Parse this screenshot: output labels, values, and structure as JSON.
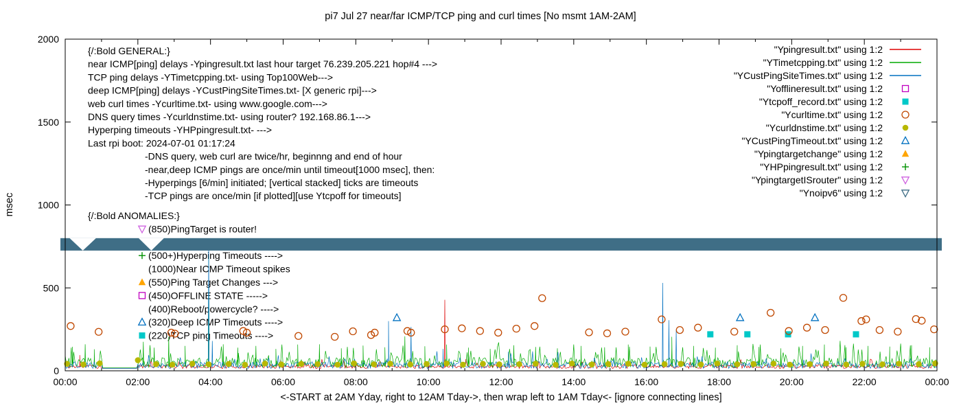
{
  "chart_data": {
    "type": "mixed-line-scatter",
    "title": "pi7 Jul 27  near/far ICMP/TCP ping and curl times [No msmt 1AM-2AM]",
    "xlabel": "<-START at 2AM Yday, right to 12AM Tday->, then wrap left to 1AM Tday<- [ignore connecting lines]",
    "ylabel": "msec",
    "xlim": [
      0,
      24
    ],
    "ylim": [
      0,
      2000
    ],
    "yticks": [
      0,
      500,
      1000,
      1500,
      2000
    ],
    "xticks": [
      "00:00",
      "02:00",
      "04:00",
      "06:00",
      "08:00",
      "10:00",
      "12:00",
      "14:00",
      "16:00",
      "18:00",
      "20:00",
      "22:00",
      "00:00"
    ],
    "grid": false,
    "no_measurement_gap_hours": [
      1,
      2
    ],
    "series": [
      {
        "name": "Ypingresult.txt",
        "style": "line",
        "color": "#dd0000",
        "noise": {
          "min": 14,
          "max": 38,
          "burst_p": 0.04,
          "burst_extra": 50,
          "seed": 11
        },
        "spikes": [
          [
            0.4,
            95
          ],
          [
            10.45,
            428
          ]
        ]
      },
      {
        "name": "YTimetcpping.txt",
        "style": "line",
        "color": "#00aa00",
        "noise": {
          "min": 18,
          "max": 80,
          "burst_p": 0.12,
          "burst_extra": 110,
          "seed": 23
        },
        "spikes": [
          [
            0.2,
            145
          ],
          [
            0.55,
            160
          ],
          [
            0.8,
            130
          ],
          [
            2.15,
            175
          ],
          [
            2.45,
            140
          ],
          [
            2.85,
            205
          ],
          [
            3.3,
            150
          ],
          [
            3.95,
            690
          ],
          [
            4.35,
            160
          ],
          [
            4.75,
            140
          ],
          [
            5.25,
            150
          ],
          [
            5.8,
            132
          ],
          [
            6.4,
            158
          ],
          [
            7.0,
            144
          ],
          [
            7.6,
            136
          ],
          [
            8.2,
            152
          ],
          [
            8.8,
            142
          ],
          [
            9.35,
            208
          ],
          [
            9.9,
            148
          ],
          [
            10.5,
            158
          ],
          [
            11.1,
            140
          ],
          [
            11.7,
            132
          ],
          [
            12.35,
            154
          ],
          [
            12.95,
            144
          ],
          [
            13.55,
            136
          ],
          [
            14.2,
            150
          ],
          [
            14.85,
            142
          ],
          [
            15.5,
            158
          ],
          [
            16.1,
            146
          ],
          [
            16.7,
            205
          ],
          [
            17.3,
            150
          ],
          [
            17.9,
            140
          ],
          [
            18.5,
            154
          ],
          [
            19.1,
            144
          ],
          [
            19.7,
            136
          ],
          [
            20.3,
            150
          ],
          [
            20.9,
            158
          ],
          [
            21.5,
            142
          ],
          [
            22.1,
            150
          ],
          [
            22.7,
            146
          ],
          [
            23.3,
            154
          ],
          [
            23.8,
            142
          ]
        ]
      },
      {
        "name": "YCustPingSiteTimes.txt",
        "style": "line",
        "color": "#0070c0",
        "noise": {
          "min": 14,
          "max": 55,
          "burst_p": 0.07,
          "burst_extra": 70,
          "seed": 37
        },
        "spikes": [
          [
            3.95,
            762
          ],
          [
            4.05,
            180
          ],
          [
            8.9,
            300
          ],
          [
            9.52,
            265
          ],
          [
            10.4,
            132
          ],
          [
            12.2,
            115
          ],
          [
            16.45,
            530
          ],
          [
            16.62,
            305
          ],
          [
            16.82,
            248
          ]
        ]
      },
      {
        "name": "Yofflineresult.txt",
        "style": "points",
        "marker": "square-open",
        "color": "#c000c0",
        "points": []
      },
      {
        "name": "Ytcpoff_record.txt",
        "style": "points",
        "marker": "square-filled",
        "color": "#00c8c8",
        "points": [
          [
            17.76,
            220
          ],
          [
            18.78,
            220
          ],
          [
            19.9,
            220
          ],
          [
            21.77,
            220
          ]
        ]
      },
      {
        "name": "Ycurltime.txt",
        "style": "points",
        "marker": "circle-open",
        "color": "#c04800",
        "points": [
          [
            0.15,
            270
          ],
          [
            0.92,
            235
          ],
          [
            2.92,
            230
          ],
          [
            3.02,
            224
          ],
          [
            4.9,
            240
          ],
          [
            5.0,
            230
          ],
          [
            6.42,
            210
          ],
          [
            7.42,
            205
          ],
          [
            7.92,
            238
          ],
          [
            8.42,
            216
          ],
          [
            8.52,
            230
          ],
          [
            9.42,
            240
          ],
          [
            9.52,
            230
          ],
          [
            10.45,
            250
          ],
          [
            10.92,
            256
          ],
          [
            11.42,
            240
          ],
          [
            11.92,
            230
          ],
          [
            12.42,
            254
          ],
          [
            12.92,
            270
          ],
          [
            13.13,
            438
          ],
          [
            14.42,
            232
          ],
          [
            14.92,
            226
          ],
          [
            15.42,
            236
          ],
          [
            16.42,
            310
          ],
          [
            16.92,
            246
          ],
          [
            17.42,
            260
          ],
          [
            18.42,
            236
          ],
          [
            19.42,
            350
          ],
          [
            19.92,
            240
          ],
          [
            20.42,
            260
          ],
          [
            20.92,
            246
          ],
          [
            21.42,
            440
          ],
          [
            21.92,
            300
          ],
          [
            22.05,
            310
          ],
          [
            22.42,
            246
          ],
          [
            22.92,
            236
          ],
          [
            23.42,
            312
          ],
          [
            23.58,
            302
          ],
          [
            23.92,
            250
          ]
        ]
      },
      {
        "name": "Ycurldnstime.txt",
        "style": "points",
        "marker": "circle-filled",
        "color": "#b8b800",
        "points": [
          [
            0.05,
            42
          ],
          [
            0.5,
            38
          ],
          [
            0.95,
            45
          ],
          [
            2.0,
            64
          ],
          [
            2.5,
            40
          ],
          [
            2.95,
            37
          ],
          [
            3.5,
            43
          ],
          [
            3.95,
            39
          ],
          [
            4.5,
            41
          ],
          [
            4.95,
            36
          ],
          [
            5.5,
            44
          ],
          [
            5.95,
            38
          ],
          [
            6.5,
            42
          ],
          [
            6.95,
            40
          ],
          [
            7.5,
            37
          ],
          [
            7.95,
            45
          ],
          [
            8.5,
            39
          ],
          [
            8.95,
            43
          ],
          [
            9.5,
            38
          ],
          [
            9.95,
            41
          ],
          [
            10.5,
            44
          ],
          [
            10.95,
            37
          ],
          [
            11.5,
            42
          ],
          [
            11.95,
            39
          ],
          [
            12.5,
            40
          ],
          [
            12.95,
            43
          ],
          [
            13.5,
            36
          ],
          [
            13.95,
            44
          ],
          [
            14.5,
            38
          ],
          [
            14.95,
            41
          ],
          [
            15.5,
            43
          ],
          [
            15.95,
            37
          ],
          [
            16.5,
            40
          ],
          [
            16.95,
            42
          ],
          [
            17.5,
            38
          ],
          [
            17.95,
            44
          ],
          [
            18.5,
            39
          ],
          [
            18.95,
            41
          ],
          [
            19.5,
            43
          ],
          [
            19.95,
            37
          ],
          [
            20.5,
            40
          ],
          [
            20.95,
            44
          ],
          [
            21.5,
            38
          ],
          [
            21.95,
            42
          ],
          [
            22.5,
            39
          ],
          [
            22.95,
            43
          ],
          [
            23.5,
            40
          ],
          [
            23.95,
            45
          ]
        ]
      },
      {
        "name": "YCustPingTimeout.txt",
        "style": "points",
        "marker": "triangle-open",
        "color": "#0070c0",
        "points": [
          [
            9.13,
            320
          ],
          [
            18.58,
            320
          ],
          [
            20.64,
            320
          ]
        ]
      },
      {
        "name": "Ypingtargetchange",
        "style": "points",
        "marker": "triangle-filled",
        "color": "#ffa500",
        "points": []
      },
      {
        "name": "YHPpingresult.txt",
        "style": "points",
        "marker": "plus",
        "color": "#009000",
        "points": []
      },
      {
        "name": "YpingtargetISrouter",
        "style": "points",
        "marker": "triangle-down-open",
        "color": "#cf63e0",
        "points": []
      },
      {
        "name": "Ynoipv6",
        "style": "band",
        "color": "#3f6e86",
        "band": {
          "y_from": 725,
          "y_to": 800,
          "notches": [
            [
              0.12,
              0.85
            ],
            [
              2.02,
              2.72
            ]
          ]
        }
      }
    ]
  },
  "legend": [
    {
      "label": "\"Ypingresult.txt\" using 1:2",
      "type": "line",
      "color": "#dd0000"
    },
    {
      "label": "\"YTimetcpping.txt\" using 1:2",
      "type": "line",
      "color": "#00aa00"
    },
    {
      "label": "\"YCustPingSiteTimes.txt\" using 1:2",
      "type": "line",
      "color": "#0070c0"
    },
    {
      "label": "\"Yofflineresult.txt\" using 1:2",
      "type": "square-open",
      "color": "#c000c0"
    },
    {
      "label": "\"Ytcpoff_record.txt\" using 1:2",
      "type": "square-filled",
      "color": "#00c8c8"
    },
    {
      "label": "\"Ycurltime.txt\" using 1:2",
      "type": "circle-open",
      "color": "#c04800"
    },
    {
      "label": "\"Ycurldnstime.txt\" using 1:2",
      "type": "circle-filled",
      "color": "#b8b800"
    },
    {
      "label": "\"YCustPingTimeout.txt\" using 1:2",
      "type": "triangle-open",
      "color": "#0070c0"
    },
    {
      "label": "\"Ypingtargetchange\" using 1:2",
      "type": "triangle-filled",
      "color": "#ffa500"
    },
    {
      "label": "\"YHPpingresult.txt\" using 1:2",
      "type": "plus",
      "color": "#009000"
    },
    {
      "label": "\"YpingtargetISrouter\" using 1:2",
      "type": "triangle-down-open",
      "color": "#cf63e0"
    },
    {
      "label": "\"Ynoipv6\" using 1:2",
      "type": "triangle-down-open",
      "color": "#3f6e86"
    }
  ],
  "annotations": {
    "general": [
      {
        "text": "{/:Bold GENERAL:}",
        "indent": 0
      },
      {
        "text": "near ICMP[ping] delays -Ypingresult.txt last hour target 76.239.205.221 hop#4 --->",
        "indent": 0
      },
      {
        "text": "TCP ping delays -YTimetcpping.txt- using Top100Web--->",
        "indent": 0
      },
      {
        "text": "deep ICMP[ping] delays -YCustPingSiteTimes.txt- [X generic rpi]--->",
        "indent": 0
      },
      {
        "text": "web curl times -Ycurltime.txt- using www.google.com--->",
        "indent": 0
      },
      {
        "text": "DNS query times -Ycurldnstime.txt- using router? 192.168.86.1--->",
        "indent": 0
      },
      {
        "text": "Hyperping timeouts -YHPpingresult.txt- --->",
        "indent": 0
      },
      {
        "text": "Last rpi boot: 2024-07-01 01:17:24",
        "indent": 0
      },
      {
        "text": "-DNS query, web curl are twice/hr, beginnng and end of hour",
        "indent": 1
      },
      {
        "text": "-near,deep ICMP pings are once/min until timeout[1000 msec], then:",
        "indent": 1
      },
      {
        "text": "-Hyperpings [6/min] initiated; [vertical stacked] ticks are timeouts",
        "indent": 1
      },
      {
        "text": "-TCP pings are once/min [if plotted][use Ytcpoff for timeouts]",
        "indent": 1
      }
    ],
    "anomalies": [
      {
        "text": "{/:Bold ANOMALIES:}",
        "marker": null,
        "color": null
      },
      {
        "text": "(850)PingTarget is router!",
        "marker": "triangle-down-open",
        "color": "#cf63e0"
      },
      {
        "text": "",
        "marker": null,
        "color": null
      },
      {
        "text": "(500+)Hyperping Timeouts ---->",
        "marker": "plus",
        "color": "#009000"
      },
      {
        "text": "(1000)Near ICMP Timeout spikes",
        "marker": null,
        "color": null
      },
      {
        "text": "(550)Ping Target Changes --->",
        "marker": "triangle-filled",
        "color": "#ffa500"
      },
      {
        "text": "(450)OFFLINE STATE ----->",
        "marker": "square-open",
        "color": "#c000c0"
      },
      {
        "text": "(400)Reboot/powercycle? ---->",
        "marker": null,
        "color": null
      },
      {
        "text": "(320)Deep ICMP Timeouts ---->",
        "marker": "triangle-open",
        "color": "#0070c0"
      },
      {
        "text": "(220)TCP ping Timeouts ---->",
        "marker": "square-filled",
        "color": "#00c8c8"
      }
    ]
  }
}
